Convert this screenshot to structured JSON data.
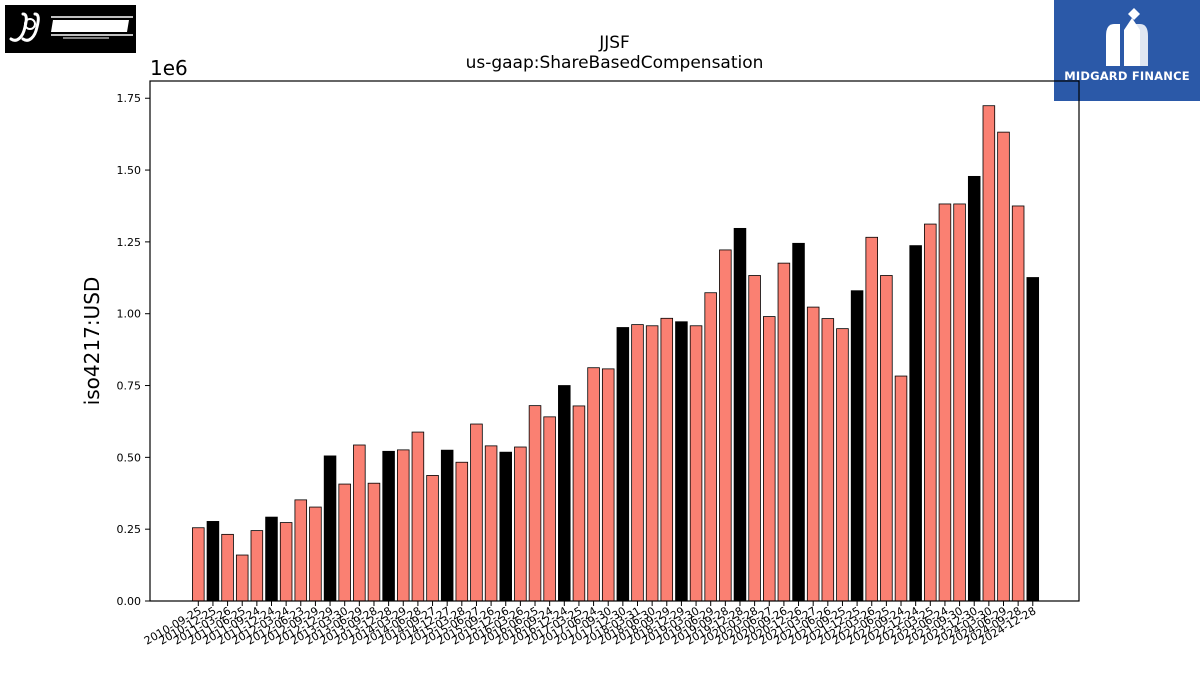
{
  "logos": {
    "left": {
      "text": "J&J SNACK FOODS CORP",
      "icon": "jj-snack-foods-logo"
    },
    "right": {
      "text": "MIDGARD FINANCE",
      "icon": "midgard-finance-logo"
    }
  },
  "colors": {
    "bar_default": "#fa8072",
    "bar_highlight": "#000000",
    "bar_edge": "#000000",
    "brand_blue": "#2b59a8"
  },
  "chart_data": {
    "type": "bar",
    "title": "JJSF",
    "subtitle": "us-gaap:ShareBasedCompensation",
    "ylabel": "iso4217:USD",
    "xlabel": "",
    "offset_label": "1e6",
    "ylim": [
      0,
      1810000
    ],
    "yticks": [
      0,
      250000,
      500000,
      750000,
      1000000,
      1250000,
      1500000,
      1750000
    ],
    "ytick_labels": [
      "0.00",
      "0.25",
      "0.50",
      "0.75",
      "1.00",
      "1.25",
      "1.50",
      "1.75"
    ],
    "grid": false,
    "categories": [
      "2010-09-25",
      "2010-12-25",
      "2011-03-26",
      "2011-06-25",
      "2011-09-24",
      "2011-12-24",
      "2012-03-24",
      "2012-06-23",
      "2012-09-29",
      "2012-12-29",
      "2013-03-30",
      "2013-06-29",
      "2013-09-28",
      "2013-12-28",
      "2014-03-29",
      "2014-06-28",
      "2014-09-27",
      "2014-12-27",
      "2015-03-28",
      "2015-06-27",
      "2015-09-26",
      "2015-12-26",
      "2016-03-26",
      "2016-06-25",
      "2016-09-24",
      "2016-12-24",
      "2017-03-25",
      "2017-06-24",
      "2017-09-30",
      "2017-12-30",
      "2018-03-31",
      "2018-06-30",
      "2018-09-29",
      "2018-12-29",
      "2019-03-30",
      "2019-06-29",
      "2019-09-28",
      "2019-12-28",
      "2020-03-28",
      "2020-06-27",
      "2020-09-26",
      "2020-12-26",
      "2021-03-27",
      "2021-06-26",
      "2021-09-25",
      "2021-12-25",
      "2022-03-26",
      "2022-06-25",
      "2022-09-24",
      "2022-12-24",
      "2023-03-25",
      "2023-06-24",
      "2023-09-30",
      "2023-12-30",
      "2024-03-30",
      "2024-06-29",
      "2024-09-28",
      "2024-12-28"
    ],
    "values": [
      255000,
      277000,
      232000,
      160000,
      245000,
      292000,
      273000,
      352000,
      327000,
      505000,
      407000,
      543000,
      410000,
      521000,
      526000,
      588000,
      437000,
      525000,
      483000,
      616000,
      540000,
      518000,
      536000,
      680000,
      641000,
      750000,
      679000,
      812000,
      808000,
      952000,
      962000,
      958000,
      984000,
      972000,
      958000,
      1073000,
      1222000,
      1297000,
      1133000,
      990000,
      1176000,
      1245000,
      1023000,
      983000,
      948000,
      1080000,
      1266000,
      1133000,
      783000,
      1237000,
      1312000,
      1382000,
      1382000,
      1478000,
      1724000,
      1632000,
      1375000,
      1126000
    ],
    "highlight": [
      false,
      true,
      false,
      false,
      false,
      true,
      false,
      false,
      false,
      true,
      false,
      false,
      false,
      true,
      false,
      false,
      false,
      true,
      false,
      false,
      false,
      true,
      false,
      false,
      false,
      true,
      false,
      false,
      false,
      true,
      false,
      false,
      false,
      true,
      false,
      false,
      false,
      true,
      false,
      false,
      false,
      true,
      false,
      false,
      false,
      true,
      false,
      false,
      false,
      true,
      false,
      false,
      false,
      true,
      false,
      false,
      false,
      true
    ]
  }
}
